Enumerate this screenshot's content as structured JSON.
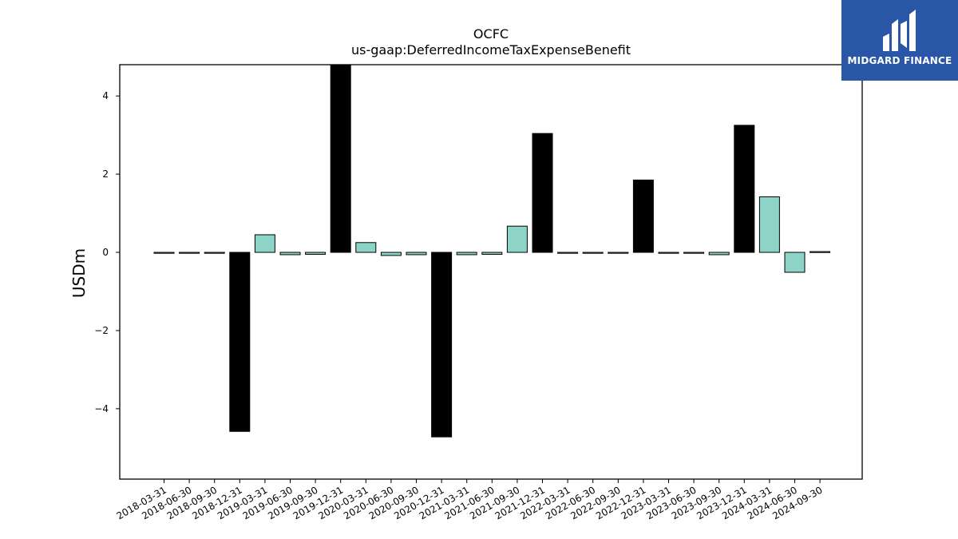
{
  "logo": {
    "text": "MIDGARD FINANCE",
    "icon": "midgard-m-logo-icon",
    "background": "#2a56a8"
  },
  "chart_data": {
    "type": "bar",
    "title": "OCFC",
    "subtitle": "us-gaap:DeferredIncomeTaxExpenseBenefit",
    "xlabel": "",
    "ylabel": "USDm",
    "ylim": [
      -5.8,
      4.8
    ],
    "yticks": [
      -4,
      -2,
      0,
      2,
      4
    ],
    "ytick_labels": [
      "−4",
      "−2",
      "0",
      "2",
      "4"
    ],
    "grid": false,
    "colors": {
      "quarter": "#8dd3c7",
      "year_end": "#000000",
      "edge": "#000000"
    },
    "categories": [
      "2018-03-31",
      "2018-06-30",
      "2018-09-30",
      "2018-12-31",
      "2019-03-31",
      "2019-06-30",
      "2019-09-30",
      "2019-12-31",
      "2020-03-31",
      "2020-06-30",
      "2020-09-30",
      "2020-12-31",
      "2021-03-31",
      "2021-06-30",
      "2021-09-30",
      "2021-12-31",
      "2022-03-31",
      "2022-06-30",
      "2022-09-30",
      "2022-12-31",
      "2023-03-31",
      "2023-06-30",
      "2023-09-30",
      "2023-12-31",
      "2024-03-31",
      "2024-06-30",
      "2024-09-30"
    ],
    "values": [
      0.0,
      0.0,
      0.0,
      -4.58,
      0.45,
      -0.06,
      -0.05,
      4.82,
      0.25,
      -0.08,
      -0.06,
      -4.72,
      -0.06,
      -0.05,
      0.67,
      3.04,
      -0.02,
      -0.02,
      -0.02,
      1.85,
      -0.02,
      -0.02,
      -0.06,
      3.25,
      1.42,
      -0.51,
      0.02
    ]
  }
}
